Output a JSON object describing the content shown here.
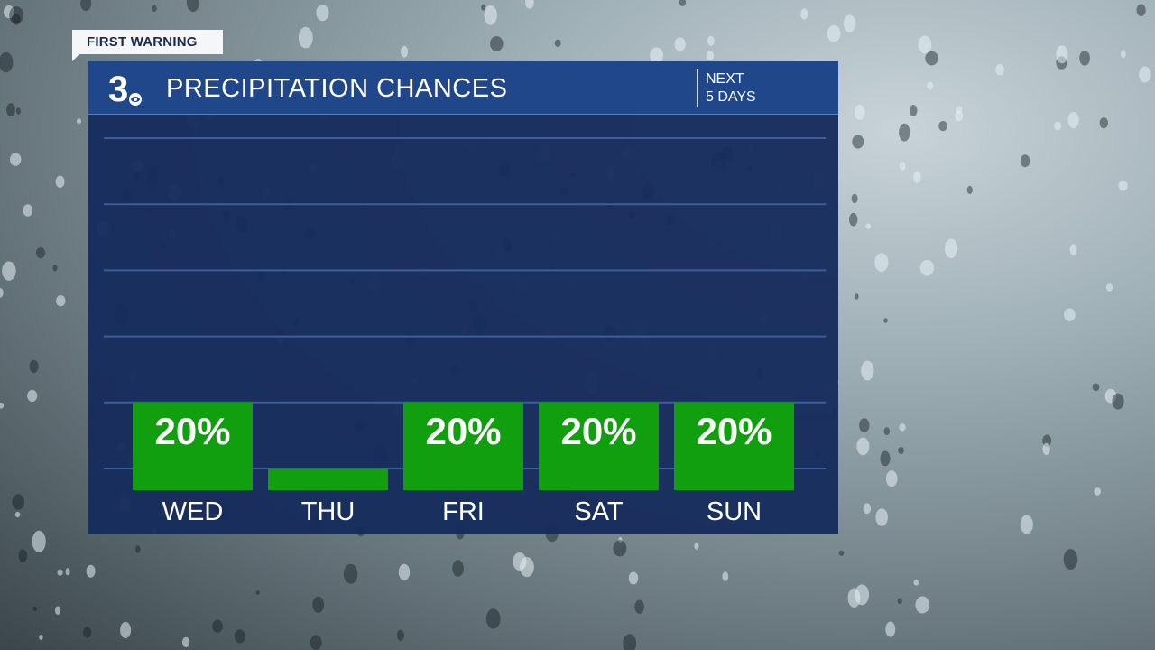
{
  "banner": {
    "tag": "FIRST WARNING"
  },
  "header": {
    "logo_text": "3",
    "title": "PRECIPITATION CHANCES",
    "range_line1": "NEXT",
    "range_line2": "5 DAYS"
  },
  "colors": {
    "panel": "#162c5c",
    "header": "#20478a",
    "bar": "#119f0f",
    "gridline": "#3a5f9a"
  },
  "chart_data": {
    "type": "bar",
    "categories": [
      "WED",
      "THU",
      "FRI",
      "SAT",
      "SUN"
    ],
    "values": [
      20,
      0,
      20,
      20,
      20
    ],
    "data_labels": [
      "20%",
      "",
      "20%",
      "20%",
      "20%"
    ],
    "ylim": [
      0,
      100
    ],
    "grid": true,
    "unit": "%"
  }
}
